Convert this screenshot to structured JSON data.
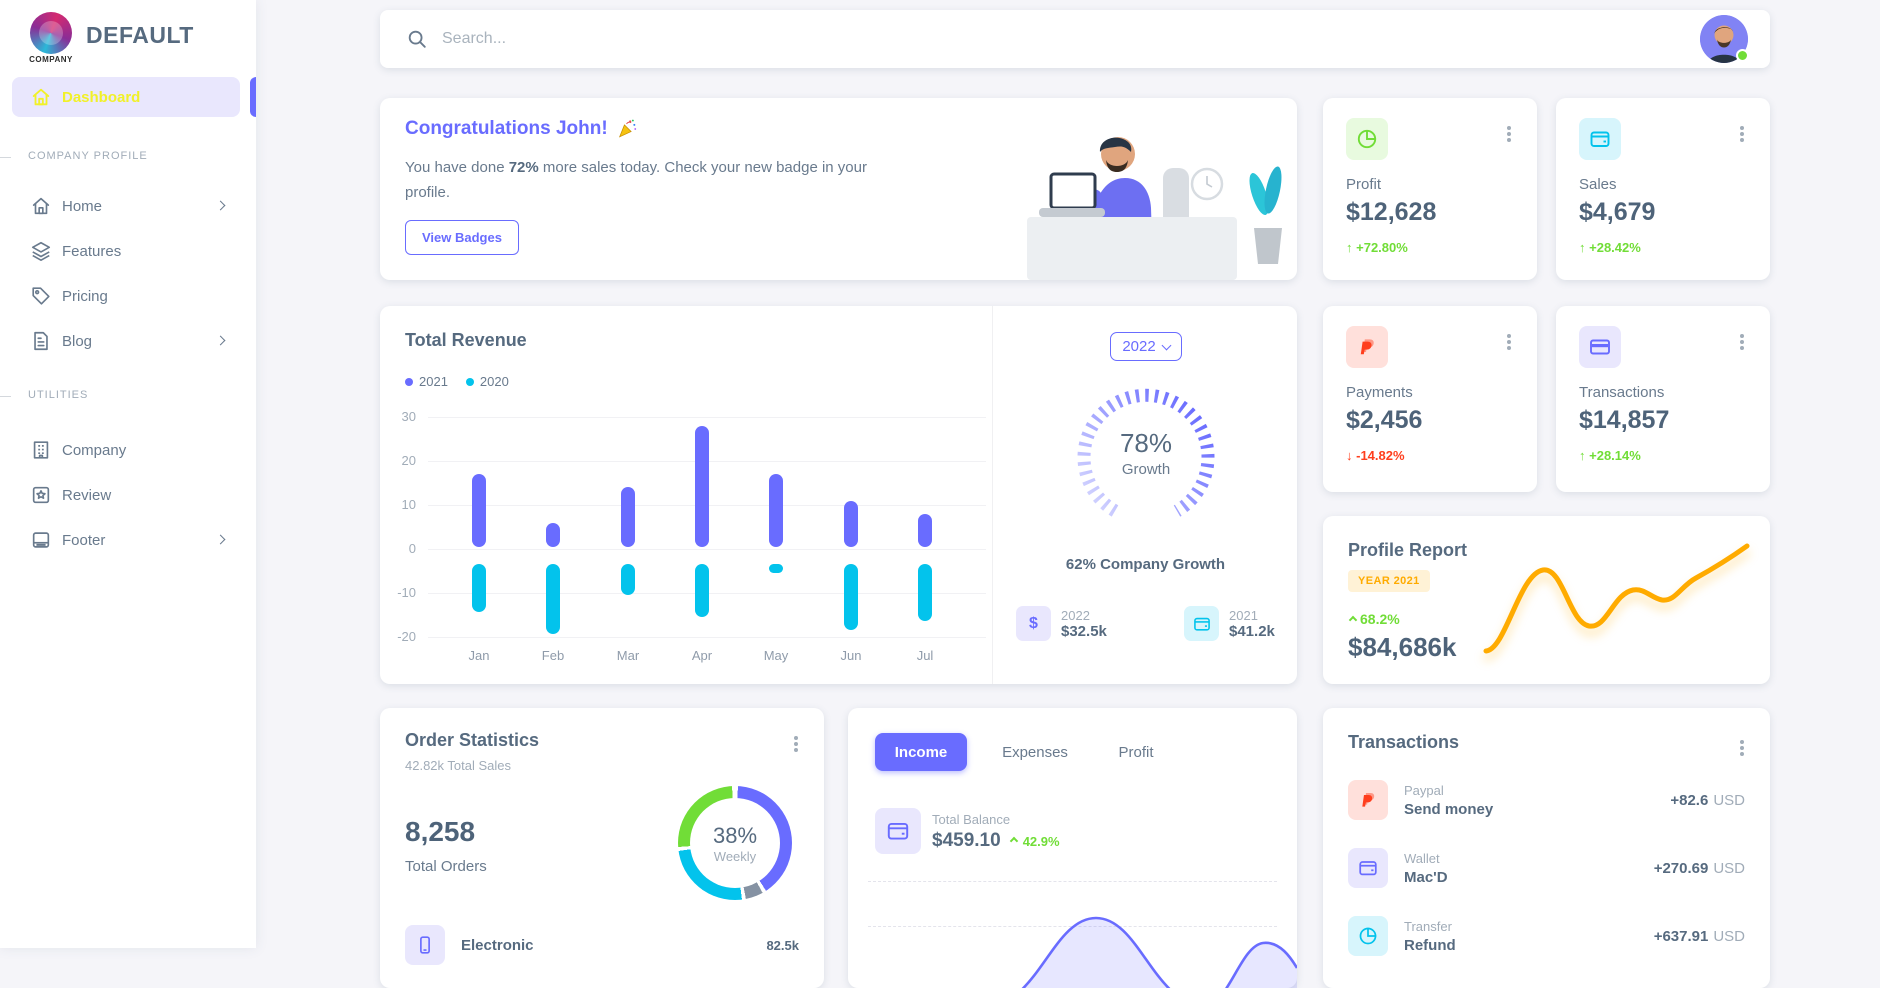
{
  "theme": {
    "primary": "#696cff",
    "info": "#03c3ec",
    "success": "#71dd37",
    "danger": "#ff3e1d",
    "warning": "#ffab00",
    "heading": "#566a7f",
    "body_text": "#697a8d",
    "muted": "#a1acb8",
    "background": "#f5f5f9",
    "sidebar_active_text": "#f1f129"
  },
  "sidebar": {
    "brand": "COMPANY",
    "app_title": "DEFAULT",
    "dashboard_label": "Dashboard",
    "sections": [
      {
        "header": "COMPANY PROFILE",
        "items": [
          {
            "label": "Home",
            "icon": "home-icon",
            "has_chevron": true
          },
          {
            "label": "Features",
            "icon": "layers-icon",
            "has_chevron": false
          },
          {
            "label": "Pricing",
            "icon": "tag-icon",
            "has_chevron": false
          },
          {
            "label": "Blog",
            "icon": "blog-icon",
            "has_chevron": true
          }
        ]
      },
      {
        "header": "UTILITIES",
        "items": [
          {
            "label": "Company",
            "icon": "building-icon",
            "has_chevron": false
          },
          {
            "label": "Review",
            "icon": "review-icon",
            "has_chevron": false
          },
          {
            "label": "Footer",
            "icon": "layout-footer-icon",
            "has_chevron": true
          }
        ]
      }
    ]
  },
  "topbar": {
    "search_placeholder": "Search...",
    "avatar_status": "online"
  },
  "congrats": {
    "title": "Congratulations John!",
    "body_prefix": "You have done ",
    "body_bold": "72%",
    "body_suffix": " more sales today. Check your new badge in your profile.",
    "button_label": "View Badges"
  },
  "stat_cards": [
    {
      "label": "Profit",
      "value": "$12,628",
      "delta": "+72.80%",
      "direction": "up",
      "icon": "pie-chart-icon",
      "accent": "#71dd37"
    },
    {
      "label": "Sales",
      "value": "$4,679",
      "delta": "+28.42%",
      "direction": "up",
      "icon": "wallet-icon",
      "accent": "#03c3ec"
    },
    {
      "label": "Payments",
      "value": "$2,456",
      "delta": "-14.82%",
      "direction": "down",
      "icon": "paypal-icon",
      "accent": "#ff3e1d"
    },
    {
      "label": "Transactions",
      "value": "$14,857",
      "delta": "+28.14%",
      "direction": "up",
      "icon": "credit-card-icon",
      "accent": "#696cff"
    }
  ],
  "growth_panel": {
    "year_select": "2022",
    "gauge_value": "78%",
    "gauge_label": "Growth",
    "caption": "62% Company Growth",
    "items": [
      {
        "year": "2022",
        "amount": "$32.5k",
        "icon": "dollar-icon"
      },
      {
        "year": "2021",
        "amount": "$41.2k",
        "icon": "wallet-icon"
      }
    ]
  },
  "profile_report": {
    "title": "Profile Report",
    "badge": "YEAR 2021",
    "delta": "68.2%",
    "value": "$84,686k"
  },
  "order_stats": {
    "title": "Order Statistics",
    "subtitle": "42.82k Total Sales",
    "total": "8,258",
    "total_label": "Total Orders",
    "donut_value": "38%",
    "donut_label": "Weekly",
    "items": [
      {
        "name": "Electronic",
        "value": "82.5k"
      }
    ]
  },
  "balance_card": {
    "tabs": [
      "Income",
      "Expenses",
      "Profit"
    ],
    "active_tab": "Income",
    "label": "Total Balance",
    "value": "$459.10",
    "delta": "42.9%"
  },
  "transactions": {
    "title": "Transactions",
    "rows": [
      {
        "type": "Paypal",
        "name": "Send money",
        "amount": "+82.6",
        "currency": "USD",
        "icon": "paypal-icon"
      },
      {
        "type": "Wallet",
        "name": "Mac'D",
        "amount": "+270.69",
        "currency": "USD",
        "icon": "wallet-icon"
      },
      {
        "type": "Transfer",
        "name": "Refund",
        "amount": "+637.91",
        "currency": "USD",
        "icon": "pie-chart-icon"
      }
    ]
  },
  "chart_data": [
    {
      "id": "total-revenue",
      "type": "bar",
      "title": "Total Revenue",
      "categories": [
        "Jan",
        "Feb",
        "Mar",
        "Apr",
        "May",
        "Jun",
        "Jul"
      ],
      "series": [
        {
          "name": "2021",
          "color": "#696cff",
          "values": [
            17,
            6,
            14,
            28,
            17,
            11,
            8
          ]
        },
        {
          "name": "2020",
          "color": "#03c3ec",
          "values": [
            -15,
            -20,
            -11,
            -16,
            -6,
            -19,
            -17
          ]
        }
      ],
      "ylim": [
        -20,
        30
      ],
      "yticks": [
        30,
        20,
        10,
        0,
        -10,
        -20
      ],
      "grid": true,
      "legend_position": "top-left"
    },
    {
      "id": "growth-gauge",
      "type": "radial",
      "value": 78,
      "label": "Growth",
      "color": "#696cff"
    },
    {
      "id": "order-donut",
      "type": "pie",
      "center_value": 38,
      "center_label": "Weekly",
      "segments": [
        {
          "color": "#696cff",
          "from": 3,
          "to": 147
        },
        {
          "color": "#8592a3",
          "from": 151,
          "to": 169
        },
        {
          "color": "#03c3ec",
          "from": 173,
          "to": 262
        },
        {
          "color": "#71dd37",
          "from": 266,
          "to": 357
        }
      ]
    },
    {
      "id": "profile-report-line",
      "type": "line",
      "color": "#ffab00",
      "values_estimated": [
        15,
        80,
        35,
        62,
        55,
        90
      ]
    },
    {
      "id": "income-area",
      "type": "area",
      "color": "#696cff",
      "values_estimated": [
        5,
        10,
        95,
        10,
        40
      ],
      "note": "partially visible at viewport bottom"
    }
  ]
}
